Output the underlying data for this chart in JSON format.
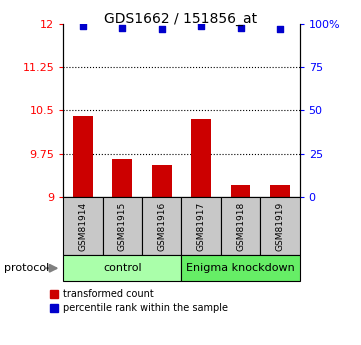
{
  "title": "GDS1662 / 151856_at",
  "samples": [
    "GSM81914",
    "GSM81915",
    "GSM81916",
    "GSM81917",
    "GSM81918",
    "GSM81919"
  ],
  "bar_values": [
    10.4,
    9.65,
    9.55,
    10.35,
    9.2,
    9.2
  ],
  "bar_bottom": 9.0,
  "scatter_right_values": [
    99,
    98,
    97,
    99,
    98,
    97
  ],
  "ylim_left": [
    9.0,
    12.0
  ],
  "ylim_right": [
    0,
    100
  ],
  "yticks_left": [
    9,
    9.75,
    10.5,
    11.25,
    12
  ],
  "ytick_labels_left": [
    "9",
    "9.75",
    "10.5",
    "11.25",
    "12"
  ],
  "yticks_right": [
    0,
    25,
    50,
    75,
    100
  ],
  "ytick_labels_right": [
    "0",
    "25",
    "50",
    "75",
    "100%"
  ],
  "hlines": [
    9.75,
    10.5,
    11.25
  ],
  "bar_color": "#cc0000",
  "scatter_color": "#0000cc",
  "control_label": "control",
  "knockdown_label": "Enigma knockdown",
  "protocol_label": "protocol",
  "legend_bar_label": "transformed count",
  "legend_scatter_label": "percentile rank within the sample",
  "sample_box_color": "#c8c8c8",
  "control_fill": "#aaffaa",
  "knockdown_fill": "#66ee66",
  "bar_width": 0.5
}
